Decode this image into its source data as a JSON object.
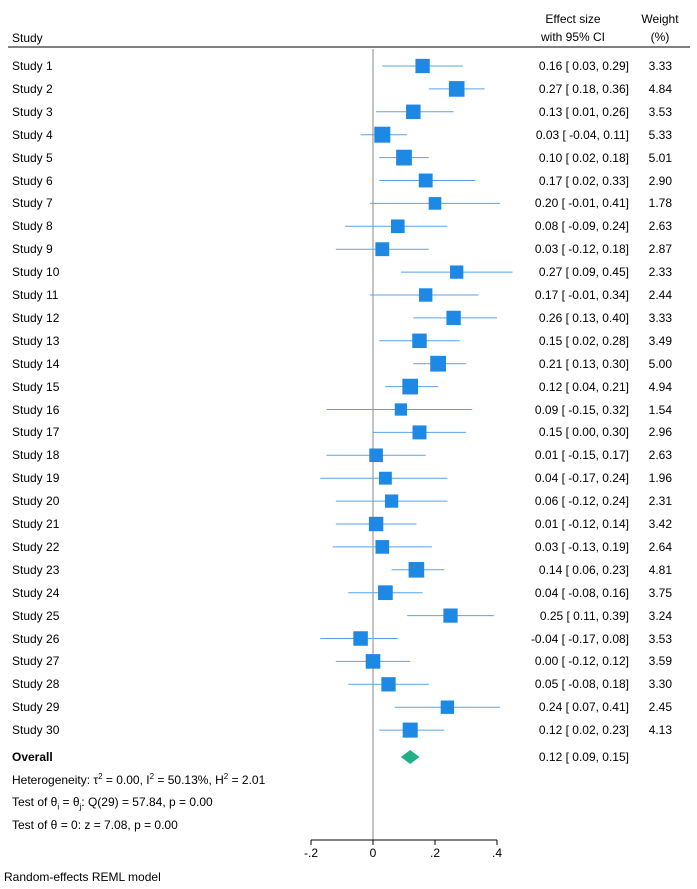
{
  "header": {
    "study_label": "Study",
    "effect_line1": "Effect size",
    "effect_line2": "with 95% CI",
    "weight_line1": "Weight",
    "weight_line2": "(%)"
  },
  "chart_data": {
    "type": "forest",
    "x_ticks": [
      -0.2,
      0,
      0.2,
      0.4
    ],
    "x_tick_labels": [
      "-.2",
      "0",
      ".2",
      ".4"
    ],
    "xlim": [
      -0.2,
      0.45
    ],
    "reference_line": 0,
    "studies": [
      {
        "label": "Study  1",
        "es": 0.16,
        "lo": 0.03,
        "hi": 0.29,
        "ci_text": "0.16 [  0.03,  0.29]",
        "weight": 3.33,
        "weight_text": "3.33"
      },
      {
        "label": "Study  2",
        "es": 0.27,
        "lo": 0.18,
        "hi": 0.36,
        "ci_text": "0.27 [  0.18,  0.36]",
        "weight": 4.84,
        "weight_text": "4.84"
      },
      {
        "label": "Study  3",
        "es": 0.13,
        "lo": 0.01,
        "hi": 0.26,
        "ci_text": "0.13 [  0.01,  0.26]",
        "weight": 3.53,
        "weight_text": "3.53"
      },
      {
        "label": "Study  4",
        "es": 0.03,
        "lo": -0.04,
        "hi": 0.11,
        "ci_text": "0.03 [ -0.04,  0.11]",
        "weight": 5.33,
        "weight_text": "5.33"
      },
      {
        "label": "Study  5",
        "es": 0.1,
        "lo": 0.02,
        "hi": 0.18,
        "ci_text": "0.10 [  0.02,  0.18]",
        "weight": 5.01,
        "weight_text": "5.01"
      },
      {
        "label": "Study  6",
        "es": 0.17,
        "lo": 0.02,
        "hi": 0.33,
        "ci_text": "0.17 [  0.02,  0.33]",
        "weight": 2.9,
        "weight_text": "2.90"
      },
      {
        "label": "Study  7",
        "es": 0.2,
        "lo": -0.01,
        "hi": 0.41,
        "ci_text": "0.20 [ -0.01,  0.41]",
        "weight": 1.78,
        "weight_text": "1.78"
      },
      {
        "label": "Study  8",
        "es": 0.08,
        "lo": -0.09,
        "hi": 0.24,
        "ci_text": "0.08 [ -0.09,  0.24]",
        "weight": 2.63,
        "weight_text": "2.63"
      },
      {
        "label": "Study  9",
        "es": 0.03,
        "lo": -0.12,
        "hi": 0.18,
        "ci_text": "0.03 [ -0.12,  0.18]",
        "weight": 2.87,
        "weight_text": "2.87"
      },
      {
        "label": "Study 10",
        "es": 0.27,
        "lo": 0.09,
        "hi": 0.45,
        "ci_text": "0.27 [  0.09,  0.45]",
        "weight": 2.33,
        "weight_text": "2.33"
      },
      {
        "label": "Study 11",
        "es": 0.17,
        "lo": -0.01,
        "hi": 0.34,
        "ci_text": "0.17 [ -0.01,  0.34]",
        "weight": 2.44,
        "weight_text": "2.44"
      },
      {
        "label": "Study 12",
        "es": 0.26,
        "lo": 0.13,
        "hi": 0.4,
        "ci_text": "0.26 [  0.13,  0.40]",
        "weight": 3.33,
        "weight_text": "3.33"
      },
      {
        "label": "Study 13",
        "es": 0.15,
        "lo": 0.02,
        "hi": 0.28,
        "ci_text": "0.15 [  0.02,  0.28]",
        "weight": 3.49,
        "weight_text": "3.49"
      },
      {
        "label": "Study 14",
        "es": 0.21,
        "lo": 0.13,
        "hi": 0.3,
        "ci_text": "0.21 [  0.13,  0.30]",
        "weight": 5.0,
        "weight_text": "5.00"
      },
      {
        "label": "Study 15",
        "es": 0.12,
        "lo": 0.04,
        "hi": 0.21,
        "ci_text": "0.12 [  0.04,  0.21]",
        "weight": 4.94,
        "weight_text": "4.94"
      },
      {
        "label": "Study 16",
        "es": 0.09,
        "lo": -0.15,
        "hi": 0.32,
        "ci_text": "0.09 [ -0.15,  0.32]",
        "weight": 1.54,
        "weight_text": "1.54"
      },
      {
        "label": "Study 17",
        "es": 0.15,
        "lo": 0.0,
        "hi": 0.3,
        "ci_text": "0.15 [  0.00,  0.30]",
        "weight": 2.96,
        "weight_text": "2.96"
      },
      {
        "label": "Study 18",
        "es": 0.01,
        "lo": -0.15,
        "hi": 0.17,
        "ci_text": "0.01 [ -0.15,  0.17]",
        "weight": 2.63,
        "weight_text": "2.63"
      },
      {
        "label": "Study 19",
        "es": 0.04,
        "lo": -0.17,
        "hi": 0.24,
        "ci_text": "0.04 [ -0.17,  0.24]",
        "weight": 1.96,
        "weight_text": "1.96"
      },
      {
        "label": "Study 20",
        "es": 0.06,
        "lo": -0.12,
        "hi": 0.24,
        "ci_text": "0.06 [ -0.12,  0.24]",
        "weight": 2.31,
        "weight_text": "2.31"
      },
      {
        "label": "Study 21",
        "es": 0.01,
        "lo": -0.12,
        "hi": 0.14,
        "ci_text": "0.01 [ -0.12,  0.14]",
        "weight": 3.42,
        "weight_text": "3.42"
      },
      {
        "label": "Study 22",
        "es": 0.03,
        "lo": -0.13,
        "hi": 0.19,
        "ci_text": "0.03 [ -0.13,  0.19]",
        "weight": 2.64,
        "weight_text": "2.64"
      },
      {
        "label": "Study 23",
        "es": 0.14,
        "lo": 0.06,
        "hi": 0.23,
        "ci_text": "0.14 [  0.06,  0.23]",
        "weight": 4.81,
        "weight_text": "4.81"
      },
      {
        "label": "Study 24",
        "es": 0.04,
        "lo": -0.08,
        "hi": 0.16,
        "ci_text": "0.04 [ -0.08,  0.16]",
        "weight": 3.75,
        "weight_text": "3.75"
      },
      {
        "label": "Study 25",
        "es": 0.25,
        "lo": 0.11,
        "hi": 0.39,
        "ci_text": "0.25 [  0.11,  0.39]",
        "weight": 3.24,
        "weight_text": "3.24"
      },
      {
        "label": "Study 26",
        "es": -0.04,
        "lo": -0.17,
        "hi": 0.08,
        "ci_text": "-0.04 [ -0.17,  0.08]",
        "weight": 3.53,
        "weight_text": "3.53"
      },
      {
        "label": "Study 27",
        "es": 0.0,
        "lo": -0.12,
        "hi": 0.12,
        "ci_text": "0.00 [ -0.12,  0.12]",
        "weight": 3.59,
        "weight_text": "3.59"
      },
      {
        "label": "Study 28",
        "es": 0.05,
        "lo": -0.08,
        "hi": 0.18,
        "ci_text": "0.05 [ -0.08,  0.18]",
        "weight": 3.3,
        "weight_text": "3.30"
      },
      {
        "label": "Study 29",
        "es": 0.24,
        "lo": 0.07,
        "hi": 0.41,
        "ci_text": "0.24 [  0.07,  0.41]",
        "weight": 2.45,
        "weight_text": "2.45"
      },
      {
        "label": "Study 30",
        "es": 0.12,
        "lo": 0.02,
        "hi": 0.23,
        "ci_text": "0.12 [  0.02,  0.23]",
        "weight": 4.13,
        "weight_text": "4.13"
      }
    ],
    "overall": {
      "label": "Overall",
      "es": 0.12,
      "lo": 0.09,
      "hi": 0.15,
      "ci_text": "0.12 [  0.09,  0.15]"
    },
    "colors": {
      "marker": "#1e88e5",
      "ci_line": "#5aa3e8",
      "diamond": "#1fb08a",
      "refline": "#8a8a8a"
    }
  },
  "stats": {
    "heterogeneity_prefix": "Heterogeneity: τ",
    "tau2_value": " = 0.00, I",
    "i2_value": " = 50.13%, H",
    "h2_value": " = 2.01",
    "test_theta_prefix": "Test of θ",
    "test_theta_mid": " = θ",
    "test_theta_rest": ": Q(29) = 57.84, p = 0.00",
    "test_zero": "Test of θ = 0: z = 7.08, p = 0.00",
    "sup2": "2",
    "sub_i": "i",
    "sub_j": "j"
  },
  "footer": {
    "model": "Random-effects REML model"
  }
}
